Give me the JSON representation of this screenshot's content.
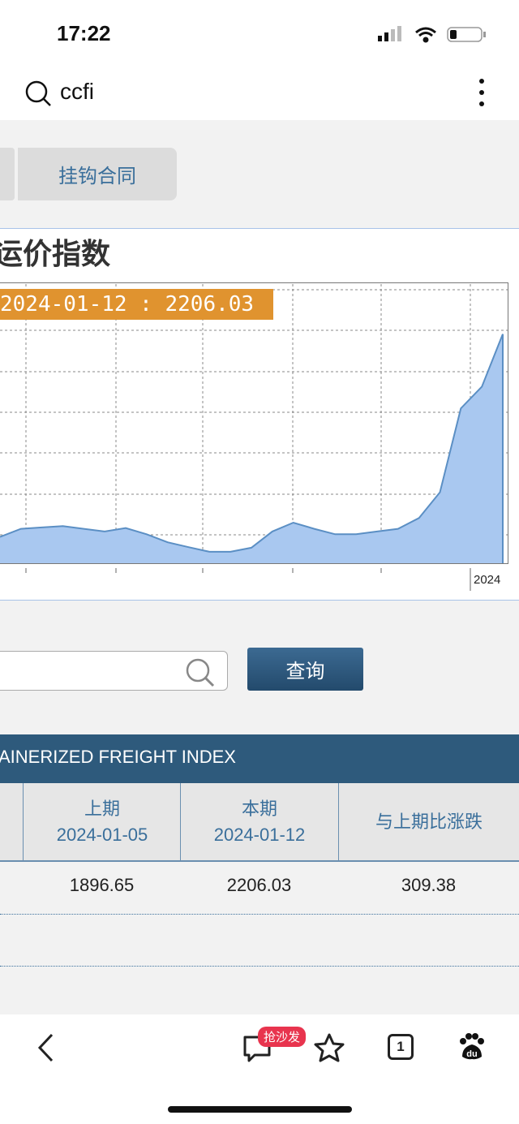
{
  "status_bar": {
    "time": "17:22"
  },
  "search": {
    "query": "ccfi",
    "icons": [
      "search-icon",
      "more-vertical-icon"
    ]
  },
  "tabs": [
    {
      "label": "挂钩合同"
    }
  ],
  "section_title": "运价指数",
  "tooltip": "2024-01-12 : 2206.03",
  "chart_data": {
    "type": "area",
    "x_tick_labels": [
      "2024"
    ],
    "values": [
      1016,
      1064,
      1072,
      1080,
      1064,
      1048,
      1068,
      1032,
      985,
      956,
      929,
      929,
      953,
      1048,
      1100,
      1064,
      1032,
      1032,
      1048,
      1064,
      1127,
      1278,
      1770,
      1897,
      2206
    ],
    "ylim": [
      862,
      2504
    ],
    "grid": true,
    "fill_color": "#a9c8f0",
    "line_color": "#5b8fc4"
  },
  "query_button": "查询",
  "table": {
    "title": "AINERIZED FREIGHT INDEX",
    "headers": [
      {
        "l1": "上期",
        "l2": "2024-01-05"
      },
      {
        "l1": "本期",
        "l2": "2024-01-12"
      },
      {
        "l1": "与上期比涨跌",
        "l2": ""
      }
    ],
    "row": [
      "1896.65",
      "2206.03",
      "309.38"
    ]
  },
  "bottom_nav": {
    "badge": "抢沙发",
    "tab_count": "1"
  },
  "colors": {
    "accent": "#2e5a7c",
    "tooltip": "#e0932f",
    "badge": "#e8344e"
  }
}
